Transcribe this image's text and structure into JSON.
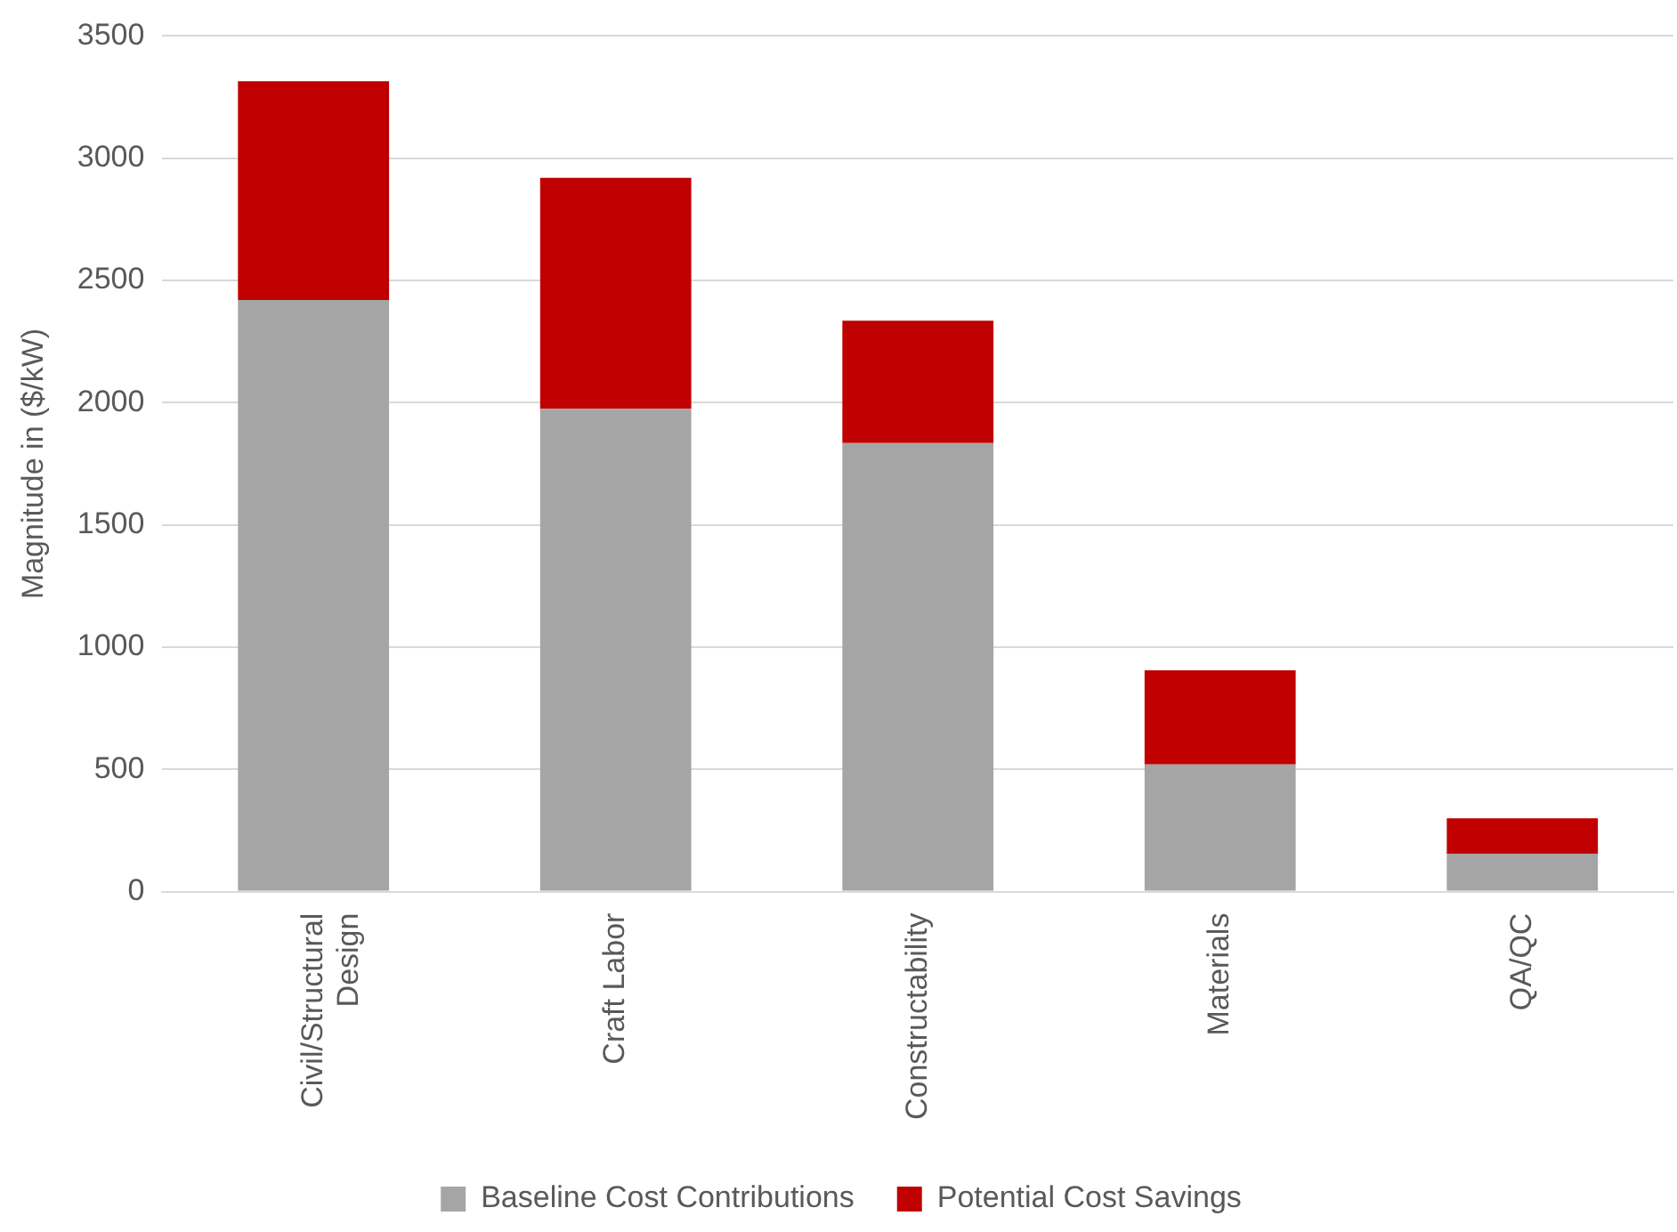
{
  "chart_data": {
    "type": "bar",
    "stacked": true,
    "ylabel": "Magnitude in ($/kW)",
    "categories": [
      "Civil/Structural Design",
      "Craft Labor",
      "Constructability",
      "Materials",
      "QA/QC"
    ],
    "series": [
      {
        "name": "Baseline Cost Contributions",
        "color": "#a5a5a5",
        "values": [
          2420,
          1975,
          1835,
          520,
          155
        ]
      },
      {
        "name": "Potential Cost Savings",
        "color": "#c00000",
        "values": [
          895,
          945,
          500,
          385,
          145
        ]
      }
    ],
    "ylim": [
      0,
      3500
    ],
    "yticks": [
      0,
      500,
      1000,
      1500,
      2000,
      2500,
      3000,
      3500
    ],
    "grid": "y",
    "legend": "bottom"
  }
}
